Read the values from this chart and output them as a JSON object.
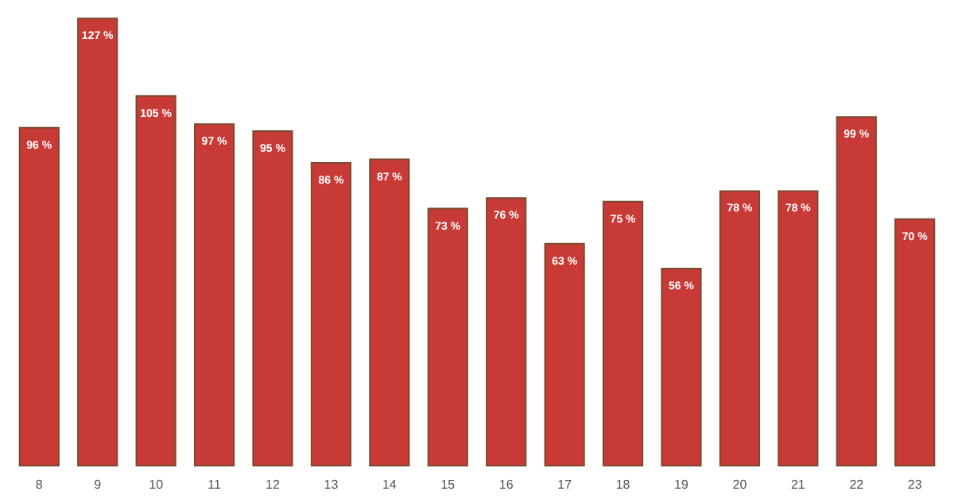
{
  "chart_data": {
    "type": "bar",
    "categories": [
      "8",
      "9",
      "10",
      "11",
      "12",
      "13",
      "14",
      "15",
      "16",
      "17",
      "18",
      "19",
      "20",
      "21",
      "22",
      "23"
    ],
    "values": [
      96,
      127,
      105,
      97,
      95,
      86,
      87,
      73,
      76,
      63,
      75,
      56,
      78,
      78,
      99,
      70
    ],
    "value_labels": [
      "96 %",
      "127 %",
      "105 %",
      "97 %",
      "95 %",
      "86 %",
      "87 %",
      "73 %",
      "76 %",
      "63 %",
      "75 %",
      "56 %",
      "78 %",
      "78 %",
      "99 %",
      "70 %"
    ],
    "color": "#c83a36"
  }
}
